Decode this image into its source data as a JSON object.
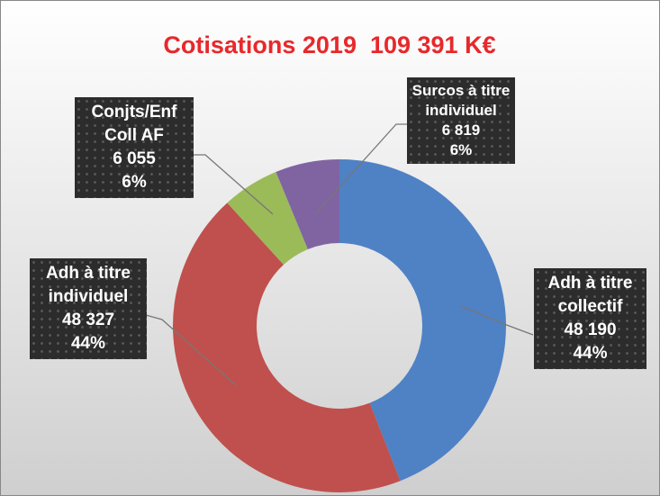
{
  "chart_data": {
    "type": "donut",
    "title": "Cotisations 2019  109 391 K€",
    "categories": [
      "Adh à titre collectif",
      "Adh à titre individuel",
      "Conjts/Enf Coll AF",
      "Surcos à titre individuel"
    ],
    "values": [
      48190,
      48327,
      6055,
      6819
    ],
    "value_labels": [
      "48 190",
      "48 327",
      "6 055",
      "6 819"
    ],
    "percent_labels": [
      "44%",
      "44%",
      "6%",
      "6%"
    ],
    "colors": [
      "#4f81c5",
      "#c0504d",
      "#9bbb59",
      "#8064a2"
    ]
  }
}
